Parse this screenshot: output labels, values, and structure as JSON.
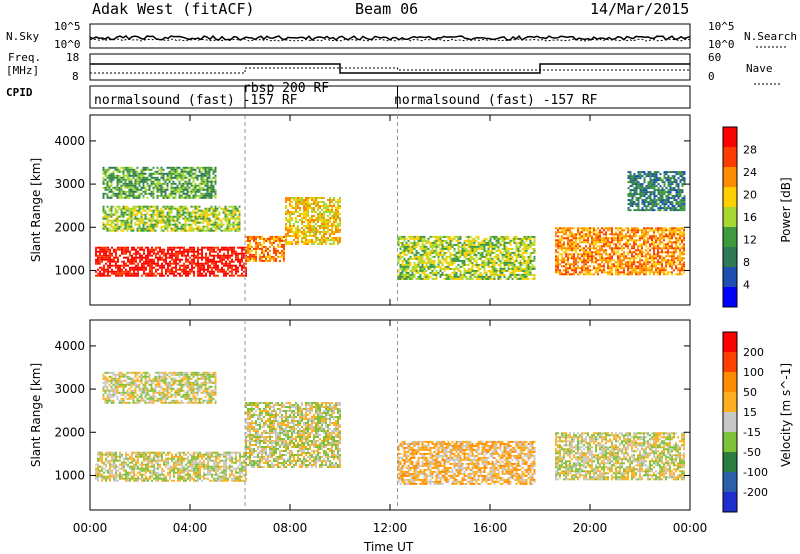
{
  "header": {
    "site": "Adak West (fitACF)",
    "beam": "Beam 06",
    "date": "14/Mar/2015"
  },
  "top_panels": {
    "nsky_label": "N.Sky",
    "nsky_ticks": [
      "10^5",
      "10^0"
    ],
    "nsearch_label": "N.Search",
    "nsearch_ticks": [
      "10^5",
      "10^0"
    ],
    "freq_label_1": "Freq.",
    "freq_label_2": "[MHz]",
    "freq_ticks": [
      "18",
      "8"
    ],
    "nave_label": "Nave",
    "nave_ticks": [
      "60",
      "0"
    ],
    "cpid_label": "CPID",
    "cpid_segments": [
      "normalsound (fast) -157 RF",
      "rbsp 200 RF",
      "normalsound (fast) -157 RF"
    ]
  },
  "xaxis": {
    "label": "Time UT",
    "ticks": [
      "00:00",
      "04:00",
      "08:00",
      "12:00",
      "16:00",
      "20:00",
      "00:00"
    ]
  },
  "colors": {
    "power": [
      "#0000ff",
      "#1f4fb0",
      "#2f7a55",
      "#3f9a3f",
      "#a8d832",
      "#ffd000",
      "#ff8c00",
      "#ff3c00",
      "#ff0000"
    ],
    "velocity": [
      "#1f2ecf",
      "#2b5fa8",
      "#2d7d3f",
      "#7ec23a",
      "#c8c8c8",
      "#ffb020",
      "#ff8c00",
      "#ff4000",
      "#ff0000"
    ]
  },
  "chart_data": [
    {
      "type": "heatmap",
      "title": "",
      "xlabel": "",
      "ylabel": "Slant Range [km]",
      "yticks": [
        "1000",
        "2000",
        "3000",
        "4000"
      ],
      "ylim": [
        200,
        4600
      ],
      "xlim_hours": [
        0,
        24
      ],
      "colorbar_label": "Power [dB]",
      "colorbar_ticks": [
        "4",
        "8",
        "12",
        "16",
        "20",
        "24",
        "28"
      ],
      "bands": [
        {
          "t0": 0.2,
          "t1": 6.2,
          "r0": 900,
          "r1": 1550,
          "level": 8
        },
        {
          "t0": 6.2,
          "t1": 7.8,
          "r0": 1200,
          "r1": 1800,
          "level": 6
        },
        {
          "t0": 7.8,
          "t1": 10.0,
          "r0": 1600,
          "r1": 2700,
          "level": 5
        },
        {
          "t0": 0.5,
          "t1": 6.0,
          "r0": 1900,
          "r1": 2500,
          "level": 4
        },
        {
          "t0": 0.5,
          "t1": 5.0,
          "r0": 2700,
          "r1": 3400,
          "level": 3
        },
        {
          "t0": 12.3,
          "t1": 17.8,
          "r0": 800,
          "r1": 1800,
          "level": 4
        },
        {
          "t0": 18.6,
          "t1": 23.8,
          "r0": 900,
          "r1": 2000,
          "level": 6
        },
        {
          "t0": 21.5,
          "t1": 23.8,
          "r0": 2400,
          "r1": 3300,
          "level": 2
        }
      ]
    },
    {
      "type": "heatmap",
      "title": "",
      "xlabel": "Time UT",
      "ylabel": "Slant Range [km]",
      "yticks": [
        "1000",
        "2000",
        "3000",
        "4000"
      ],
      "ylim": [
        200,
        4600
      ],
      "xlim_hours": [
        0,
        24
      ],
      "colorbar_label": "Velocity [m s^-1]",
      "colorbar_ticks": [
        "200",
        "100",
        "50",
        "15",
        "-15",
        "-50",
        "-100",
        "-200"
      ],
      "bands": [
        {
          "t0": 0.2,
          "t1": 6.2,
          "r0": 900,
          "r1": 1550,
          "level": 4
        },
        {
          "t0": 6.2,
          "t1": 10.0,
          "r0": 1200,
          "r1": 2700,
          "level": 4
        },
        {
          "t0": 0.5,
          "t1": 5.0,
          "r0": 2700,
          "r1": 3400,
          "level": 4
        },
        {
          "t0": 12.3,
          "t1": 17.8,
          "r0": 800,
          "r1": 1800,
          "level": 5
        },
        {
          "t0": 18.6,
          "t1": 23.8,
          "r0": 900,
          "r1": 2000,
          "level": 4
        }
      ]
    }
  ]
}
